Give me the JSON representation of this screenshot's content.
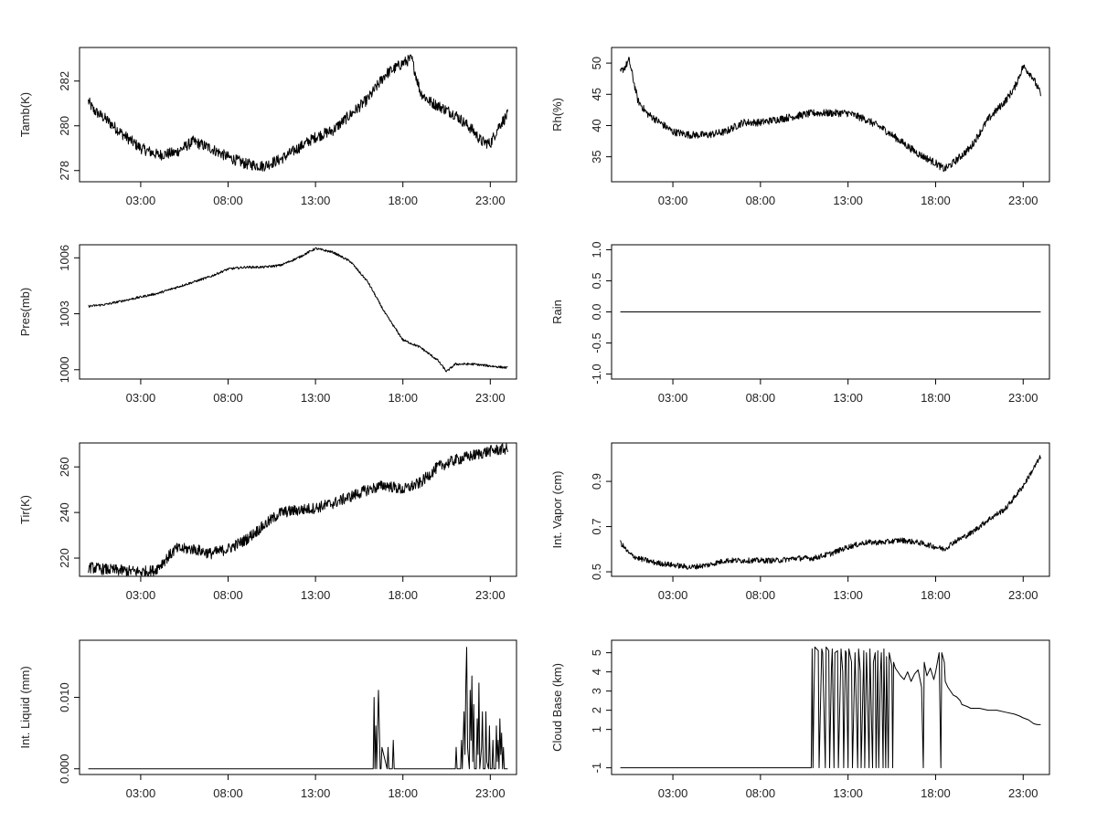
{
  "chart_data": [
    {
      "type": "line",
      "ylabel": "Tamb(K)",
      "x_ticks": [
        "03:00",
        "08:00",
        "13:00",
        "18:00",
        "23:00"
      ],
      "y_ticks": [
        "278",
        "280",
        "282"
      ],
      "ylim": [
        277.5,
        283.5
      ],
      "noise": 0.25,
      "series": [
        {
          "x": [
            0.0,
            0.3,
            1.0,
            2.0,
            3.0,
            4.0,
            5.0,
            6.0,
            7.0,
            8.0,
            9.0,
            10.0,
            11.0,
            12.0,
            13.0,
            14.0,
            15.0,
            16.0,
            17.0,
            18.0,
            18.5,
            19.0,
            19.5,
            20.0,
            21.0,
            22.0,
            22.5,
            23.0,
            23.5,
            24.0
          ],
          "y": [
            281.1,
            280.7,
            280.3,
            279.6,
            279.0,
            278.7,
            278.8,
            279.3,
            279.0,
            278.6,
            278.3,
            278.2,
            278.5,
            279.0,
            279.5,
            279.8,
            280.5,
            281.2,
            282.3,
            282.8,
            283.0,
            281.5,
            281.1,
            280.9,
            280.5,
            279.8,
            279.3,
            279.2,
            280.0,
            280.5
          ]
        }
      ]
    },
    {
      "type": "line",
      "ylabel": "Rh(%)",
      "x_ticks": [
        "03:00",
        "08:00",
        "13:00",
        "18:00",
        "23:00"
      ],
      "y_ticks": [
        "35",
        "40",
        "45",
        "50"
      ],
      "ylim": [
        31,
        52.5
      ],
      "noise": 0.6,
      "series": [
        {
          "x": [
            0.0,
            0.3,
            0.5,
            1.0,
            1.5,
            2.0,
            3.0,
            4.0,
            5.0,
            6.0,
            7.0,
            8.0,
            9.0,
            10.0,
            11.0,
            12.0,
            13.0,
            14.0,
            15.0,
            16.0,
            17.0,
            18.0,
            18.5,
            19.0,
            20.0,
            21.0,
            22.0,
            22.5,
            23.0,
            23.5,
            24.0
          ],
          "y": [
            48.5,
            49.5,
            50.5,
            44.0,
            42.0,
            41.0,
            39.0,
            38.5,
            38.5,
            39.0,
            40.5,
            40.5,
            41.0,
            41.5,
            42.0,
            42.0,
            42.0,
            41.0,
            39.5,
            37.5,
            35.5,
            34.0,
            33.0,
            34.0,
            36.5,
            41.0,
            44.0,
            46.0,
            49.5,
            48.0,
            45.0
          ]
        }
      ]
    },
    {
      "type": "line",
      "ylabel": "Pres(mb)",
      "x_ticks": [
        "03:00",
        "08:00",
        "13:00",
        "18:00",
        "23:00"
      ],
      "y_ticks": [
        "1000",
        "1003",
        "1006"
      ],
      "ylim": [
        999.5,
        1006.7
      ],
      "noise": 0.06,
      "series": [
        {
          "x": [
            0.0,
            1.0,
            2.0,
            3.0,
            4.0,
            5.0,
            6.0,
            7.0,
            8.0,
            9.0,
            10.0,
            11.0,
            12.0,
            13.0,
            14.0,
            15.0,
            16.0,
            17.0,
            18.0,
            19.0,
            20.0,
            20.5,
            21.0,
            22.0,
            23.0,
            24.0
          ],
          "y": [
            1003.4,
            1003.5,
            1003.7,
            1003.9,
            1004.1,
            1004.4,
            1004.7,
            1005.0,
            1005.4,
            1005.5,
            1005.5,
            1005.6,
            1006.0,
            1006.5,
            1006.3,
            1005.8,
            1004.7,
            1003.0,
            1001.6,
            1001.2,
            1000.5,
            999.9,
            1000.3,
            1000.3,
            1000.2,
            1000.1
          ]
        }
      ]
    },
    {
      "type": "line",
      "ylabel": "Rain",
      "x_ticks": [
        "03:00",
        "08:00",
        "13:00",
        "18:00",
        "23:00"
      ],
      "y_ticks": [
        "-1.0",
        "-0.5",
        "0.0",
        "0.5",
        "1.0"
      ],
      "ylim": [
        -1.08,
        1.08
      ],
      "noise": 0,
      "series": [
        {
          "x": [
            0.0,
            24.0
          ],
          "y": [
            0.0,
            0.0
          ]
        }
      ]
    },
    {
      "type": "line",
      "ylabel": "Tir(K)",
      "x_ticks": [
        "03:00",
        "08:00",
        "13:00",
        "18:00",
        "23:00"
      ],
      "y_ticks": [
        "220",
        "240",
        "260"
      ],
      "ylim": [
        212,
        270.5
      ],
      "noise": 2.5,
      "series": [
        {
          "x": [
            0.0,
            1.0,
            2.0,
            3.0,
            3.8,
            4.5,
            5.0,
            6.0,
            7.0,
            8.0,
            9.0,
            10.0,
            11.0,
            12.0,
            13.0,
            14.0,
            15.0,
            16.0,
            17.0,
            18.0,
            19.0,
            20.0,
            21.0,
            22.0,
            23.0,
            24.0
          ],
          "y": [
            216.0,
            215.0,
            214.5,
            214.0,
            214.5,
            220.0,
            224.0,
            224.0,
            222.0,
            224.0,
            228.0,
            234.0,
            240.0,
            241.0,
            242.0,
            244.0,
            247.0,
            250.0,
            252.0,
            250.0,
            253.0,
            260.0,
            263.0,
            265.0,
            267.0,
            268.0
          ]
        }
      ]
    },
    {
      "type": "line",
      "ylabel": "Int. Vapor (cm)",
      "x_ticks": [
        "03:00",
        "08:00",
        "13:00",
        "18:00",
        "23:00"
      ],
      "y_ticks": [
        "0.5",
        "0.7",
        "0.9"
      ],
      "ylim": [
        0.48,
        1.07
      ],
      "noise": 0.012,
      "series": [
        {
          "x": [
            0.0,
            0.5,
            1.0,
            2.0,
            3.0,
            4.0,
            5.0,
            6.0,
            7.0,
            8.0,
            9.0,
            10.0,
            11.0,
            12.0,
            13.0,
            14.0,
            15.0,
            16.0,
            17.0,
            18.0,
            18.5,
            19.0,
            20.0,
            21.0,
            22.0,
            23.0,
            24.0
          ],
          "y": [
            0.63,
            0.58,
            0.56,
            0.54,
            0.53,
            0.52,
            0.53,
            0.55,
            0.55,
            0.55,
            0.55,
            0.56,
            0.56,
            0.58,
            0.61,
            0.63,
            0.63,
            0.64,
            0.63,
            0.61,
            0.6,
            0.63,
            0.67,
            0.73,
            0.78,
            0.88,
            1.01
          ]
        }
      ]
    },
    {
      "type": "line",
      "ylabel": "Int. Liquid (mm)",
      "x_ticks": [
        "03:00",
        "08:00",
        "13:00",
        "18:00",
        "23:00"
      ],
      "y_ticks": [
        "0.000",
        "0.010"
      ],
      "ylim": [
        -0.0008,
        0.018
      ],
      "noise": 0,
      "series": [
        {
          "x": [
            0.0,
            16.3,
            16.35,
            16.4,
            16.45,
            16.5,
            16.6,
            16.7,
            16.75,
            16.8,
            17.1,
            17.15,
            17.2,
            17.4,
            17.45,
            17.5,
            21.0,
            21.05,
            21.1,
            21.3,
            21.35,
            21.4,
            21.5,
            21.55,
            21.6,
            21.65,
            21.7,
            21.8,
            21.85,
            21.9,
            21.95,
            22.0,
            22.05,
            22.1,
            22.2,
            22.25,
            22.3,
            22.35,
            22.4,
            22.5,
            22.55,
            22.6,
            22.7,
            22.75,
            22.8,
            22.9,
            22.95,
            23.0,
            23.1,
            23.15,
            23.2,
            23.3,
            23.35,
            23.4,
            23.45,
            23.5,
            23.55,
            23.6,
            23.65,
            23.7,
            23.75,
            23.8,
            24.0
          ],
          "y": [
            0.0,
            0.0,
            0.01,
            0.0,
            0.006,
            0.0,
            0.011,
            0.0,
            0.0,
            0.003,
            0.0,
            0.003,
            0.0,
            0.0,
            0.004,
            0.0,
            0.0,
            0.003,
            0.0,
            0.0,
            0.004,
            0.0,
            0.008,
            0.002,
            0.012,
            0.017,
            0.003,
            0.0,
            0.011,
            0.004,
            0.013,
            0.001,
            0.009,
            0.0,
            0.0,
            0.007,
            0.002,
            0.012,
            0.0,
            0.003,
            0.008,
            0.0,
            0.0,
            0.008,
            0.001,
            0.0,
            0.006,
            0.0,
            0.0,
            0.004,
            0.0,
            0.0,
            0.006,
            0.001,
            0.004,
            0.0,
            0.007,
            0.002,
            0.005,
            0.0,
            0.003,
            0.0,
            0.0
          ]
        }
      ]
    },
    {
      "type": "line",
      "ylabel": "Cloud Base (km)",
      "x_ticks": [
        "03:00",
        "08:00",
        "13:00",
        "18:00",
        "23:00"
      ],
      "y_ticks": [
        "-1",
        "1",
        "2",
        "3",
        "4",
        "5"
      ],
      "ylim": [
        -1.35,
        5.65
      ],
      "noise": 0,
      "series": [
        {
          "x": [
            0.0,
            10.9,
            10.95,
            11.0,
            11.05,
            11.1,
            11.3,
            11.35,
            11.5,
            11.55,
            11.7,
            11.75,
            11.9,
            11.95,
            12.05,
            12.1,
            12.2,
            12.25,
            12.4,
            12.45,
            12.55,
            12.6,
            12.7,
            12.75,
            12.85,
            12.9,
            13.0,
            13.05,
            13.2,
            13.25,
            13.4,
            13.45,
            13.55,
            13.6,
            13.7,
            13.75,
            13.9,
            13.95,
            14.05,
            14.1,
            14.2,
            14.25,
            14.4,
            14.45,
            14.55,
            14.6,
            14.7,
            14.75,
            14.85,
            14.9,
            15.0,
            15.05,
            15.15,
            15.2,
            15.3,
            15.35,
            15.5,
            15.55,
            15.6,
            15.7,
            16.0,
            16.2,
            16.4,
            16.6,
            16.8,
            17.0,
            17.2,
            17.3,
            17.35,
            17.5,
            17.7,
            17.9,
            18.0,
            18.2,
            18.3,
            18.35,
            18.5,
            18.55,
            18.7,
            19.0,
            19.2,
            19.4,
            19.5,
            19.8,
            20.0,
            20.5,
            21.0,
            21.5,
            22.0,
            22.5,
            22.8,
            23.0,
            23.3,
            23.6,
            23.8,
            24.0
          ],
          "y": [
            -1.0,
            -1.0,
            5.2,
            -1.0,
            2.5,
            5.3,
            5.1,
            -1.0,
            5.2,
            5.0,
            -1.0,
            5.3,
            5.1,
            -1.0,
            4.2,
            5.2,
            -1.0,
            5.0,
            5.1,
            -1.0,
            3.0,
            5.2,
            4.0,
            -1.0,
            5.1,
            5.0,
            -1.0,
            5.2,
            4.5,
            -1.0,
            5.0,
            3.0,
            -1.0,
            5.2,
            4.0,
            -1.0,
            5.1,
            -1.0,
            5.0,
            3.5,
            -1.0,
            5.2,
            -1.0,
            4.5,
            5.0,
            -1.0,
            5.1,
            -1.0,
            4.0,
            5.0,
            -1.0,
            5.2,
            -1.0,
            4.8,
            -1.0,
            5.0,
            4.3,
            -1.0,
            4.5,
            4.2,
            3.8,
            3.6,
            4.0,
            3.5,
            3.9,
            4.1,
            3.2,
            -1.0,
            4.5,
            3.8,
            4.2,
            3.6,
            4.0,
            5.0,
            -1.0,
            5.0,
            4.5,
            3.5,
            3.2,
            2.8,
            2.7,
            2.5,
            2.3,
            2.2,
            2.1,
            2.1,
            2.0,
            2.0,
            1.9,
            1.8,
            1.7,
            1.6,
            1.5,
            1.3,
            1.25,
            1.25
          ]
        }
      ]
    }
  ]
}
